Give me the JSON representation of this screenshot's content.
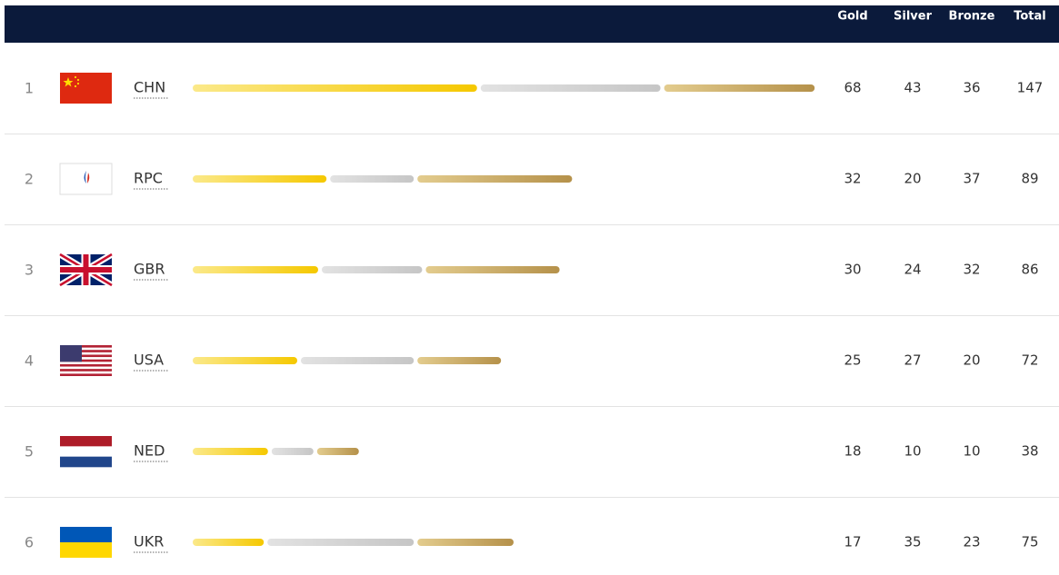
{
  "header": {
    "columns": [
      "Gold",
      "Silver",
      "Bronze",
      "Total"
    ]
  },
  "rows": [
    {
      "rank": 1,
      "code": "CHN",
      "gold": 68,
      "silver": 43,
      "bronze": 36,
      "total": 147
    },
    {
      "rank": 2,
      "code": "RPC",
      "gold": 32,
      "silver": 20,
      "bronze": 37,
      "total": 89
    },
    {
      "rank": 3,
      "code": "GBR",
      "gold": 30,
      "silver": 24,
      "bronze": 32,
      "total": 86
    },
    {
      "rank": 4,
      "code": "USA",
      "gold": 25,
      "silver": 27,
      "bronze": 20,
      "total": 72
    },
    {
      "rank": 5,
      "code": "NED",
      "gold": 18,
      "silver": 10,
      "bronze": 10,
      "total": 38
    },
    {
      "rank": 6,
      "code": "UKR",
      "gold": 17,
      "silver": 35,
      "bronze": 23,
      "total": 75
    }
  ]
}
